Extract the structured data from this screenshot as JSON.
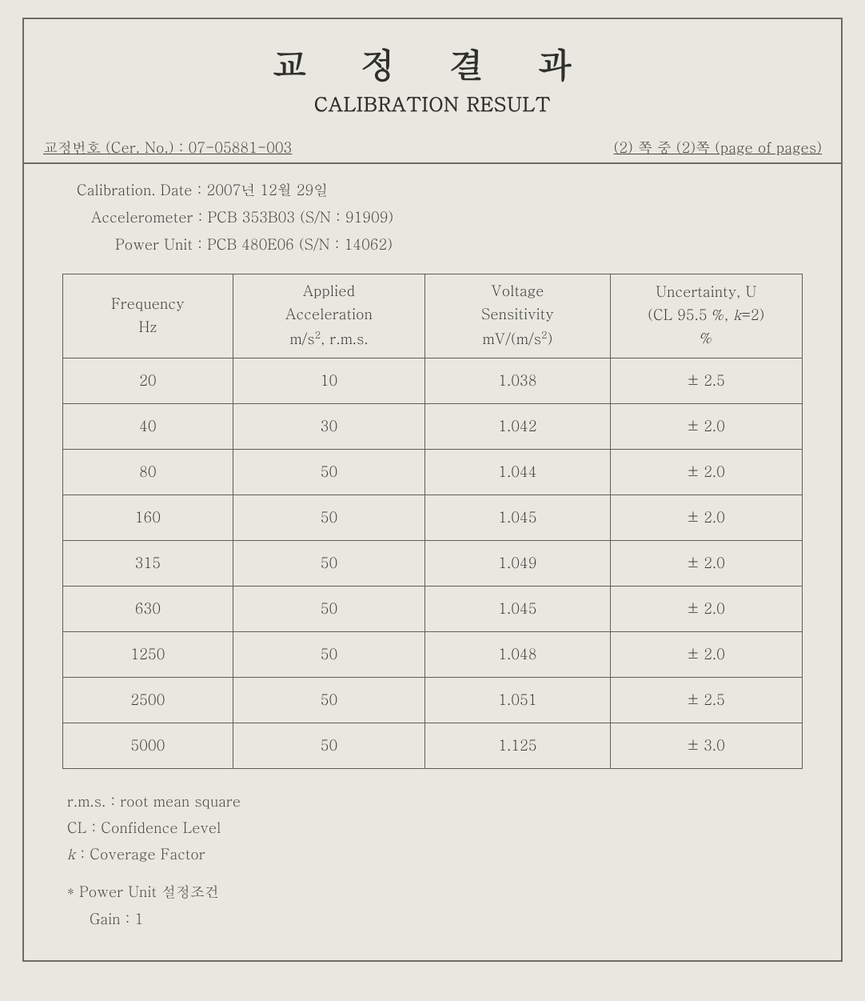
{
  "page": {
    "background_color": "#e9e8e0",
    "border_color": "#6c6c66",
    "text_color": "#3a3a36"
  },
  "title": {
    "ko": "교 정 결 과",
    "en": "CALIBRATION RESULT",
    "ko_fontsize": 44,
    "en_fontsize": 24
  },
  "header": {
    "cert_label": "교정번호 (Cer. No.) : ",
    "cert_no": "07-05881-003",
    "page_info": "(2) 쪽 중 (2)쪽 (page of pages)"
  },
  "info": {
    "date_label": "Calibration. Date : ",
    "date_value": "2007년 12월 29일",
    "accel_label": "Accelerometer : ",
    "accel_value": "PCB 353B03 (S/N : 91909)",
    "power_label": "Power Unit : ",
    "power_value": "PCB 480E06 (S/N : 14062)"
  },
  "table": {
    "type": "table",
    "border_color": "#5e5e58",
    "header_fontsize": 18,
    "cell_fontsize": 18,
    "columns": [
      {
        "l1": "Frequency",
        "l2": "Hz",
        "width": "23%"
      },
      {
        "l1": "Applied",
        "l2": "Acceleration",
        "l3": "m/s², r.m.s.",
        "width": "26%"
      },
      {
        "l1": "Voltage",
        "l2": "Sensitivity",
        "l3": "mV/(m/s²)",
        "width": "25%"
      },
      {
        "l1": "Uncertainty, U",
        "l2": "(CL 95.5 %, k=2)",
        "l3": "%",
        "width": "26%"
      }
    ],
    "rows": [
      [
        "20",
        "10",
        "1.038",
        "±  2.5"
      ],
      [
        "40",
        "30",
        "1.042",
        "±  2.0"
      ],
      [
        "80",
        "50",
        "1.044",
        "±  2.0"
      ],
      [
        "160",
        "50",
        "1.045",
        "±  2.0"
      ],
      [
        "315",
        "50",
        "1.049",
        "±  2.0"
      ],
      [
        "630",
        "50",
        "1.045",
        "±  2.0"
      ],
      [
        "1250",
        "50",
        "1.048",
        "±  2.0"
      ],
      [
        "2500",
        "50",
        "1.051",
        "±  2.5"
      ],
      [
        "5000",
        "50",
        "1.125",
        "±  3.0"
      ]
    ]
  },
  "notes": {
    "rms": "r.m.s. : root mean square",
    "cl": "CL : Confidence Level",
    "k": "k : Coverage Factor",
    "pu_title": "* Power Unit 설정조건",
    "gain": "Gain : 1"
  }
}
